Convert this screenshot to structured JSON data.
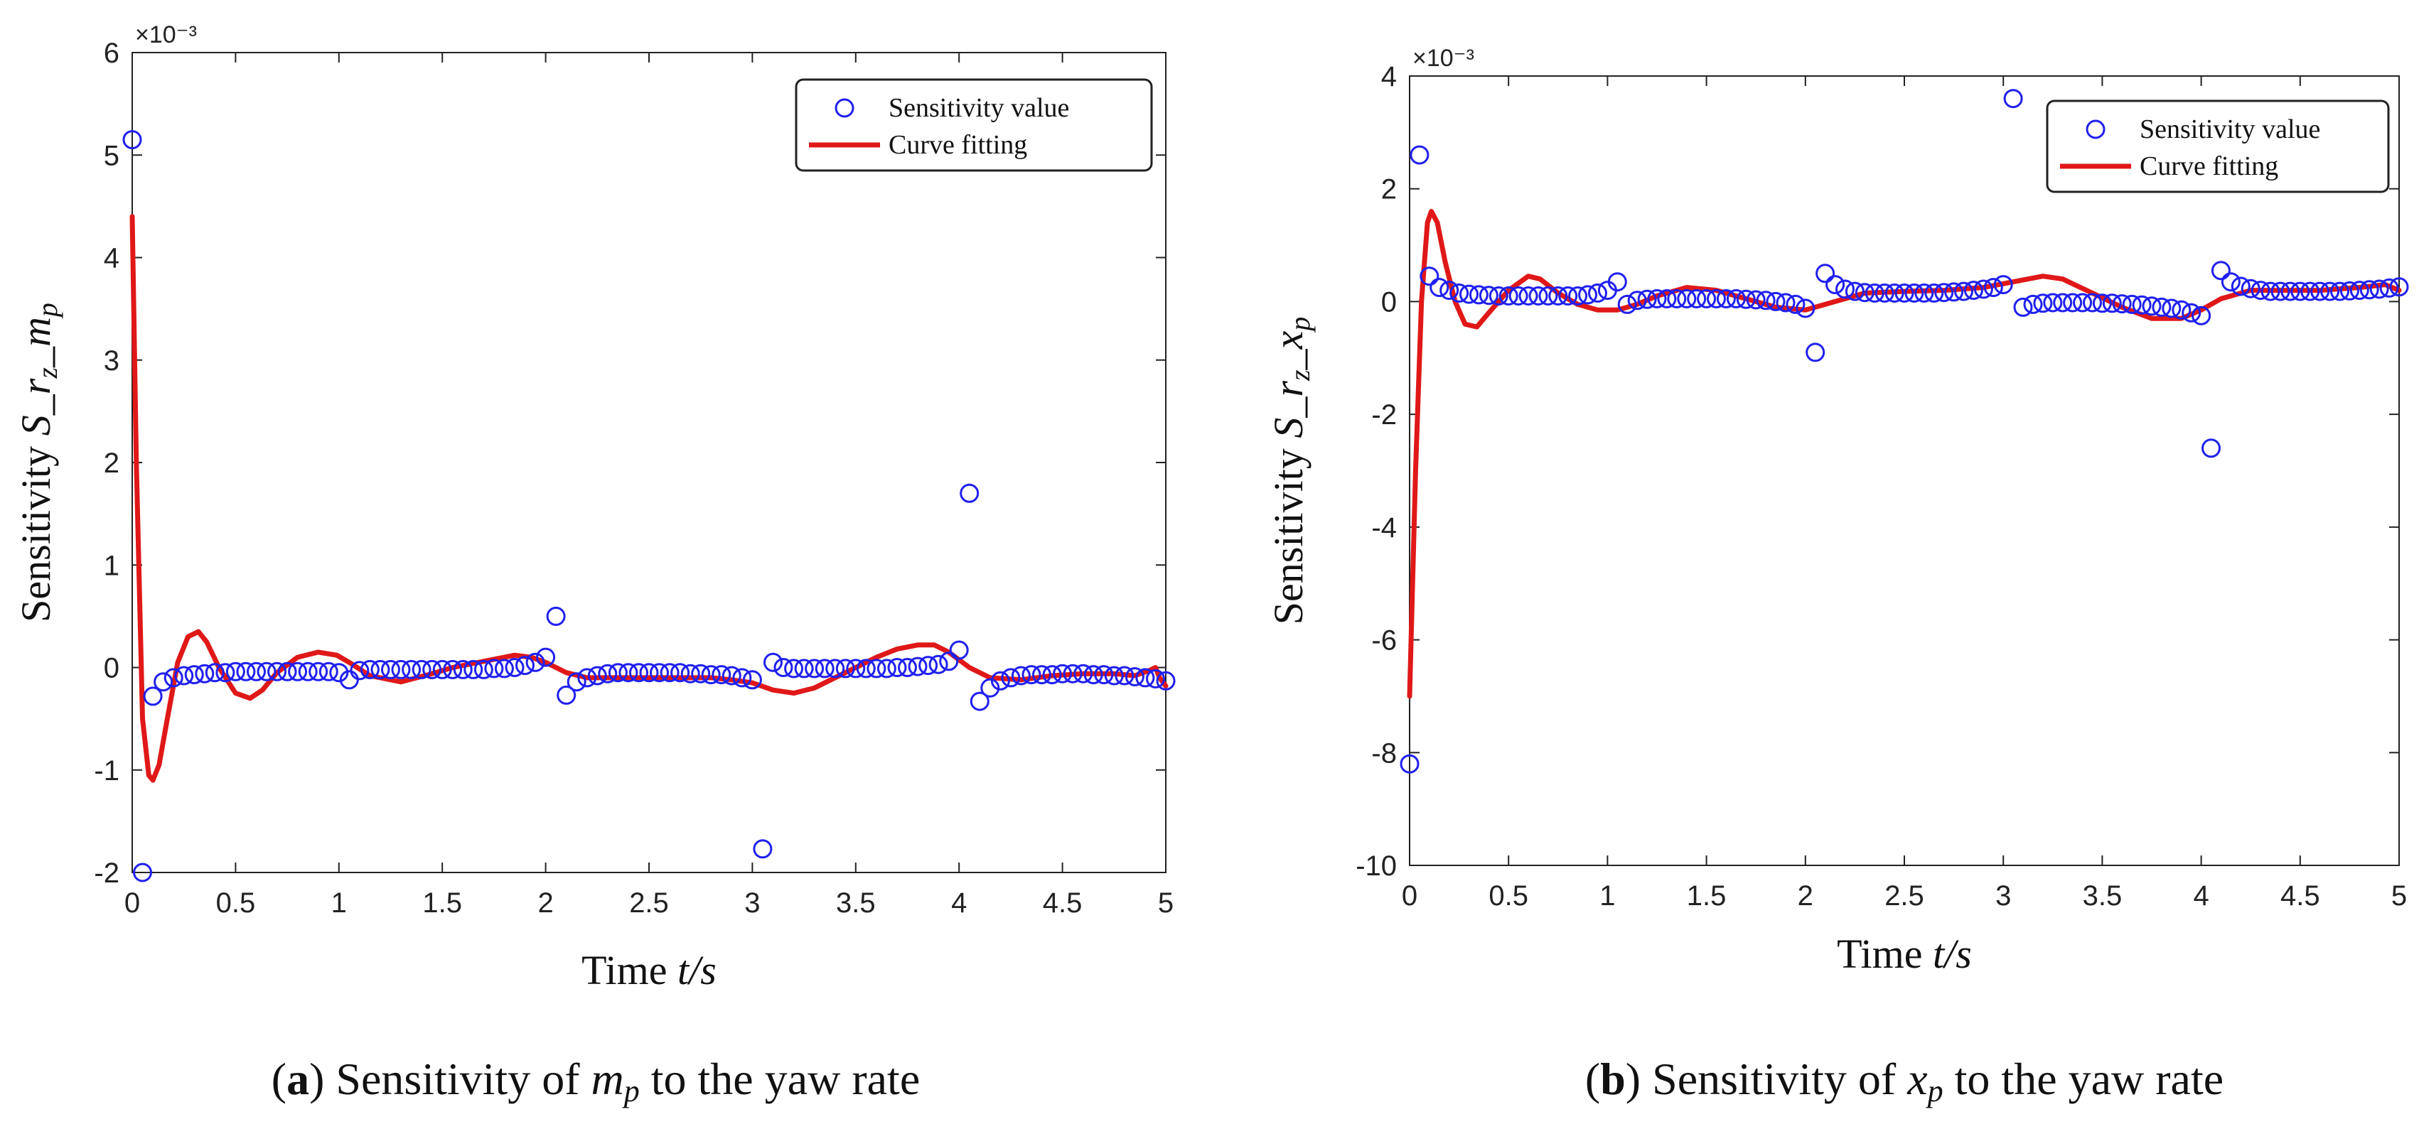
{
  "colors": {
    "marker": "#2020ee",
    "fit": "#e01818",
    "axis": "#222222"
  },
  "chart_data": [
    {
      "type": "scatter",
      "exponent_label": "×10⁻³",
      "ylabel_prefix": "Sensitivity  ",
      "ylabel_S": "S",
      "ylabel_r": "_r",
      "ylabel_r_sub": "z",
      "ylabel_var": "_m",
      "ylabel_var_sub": "p",
      "xlabel_prefix": "Time ",
      "xlabel_var": "t",
      "xlabel_suffix": "/s",
      "xlim": [
        0,
        5
      ],
      "ylim": [
        -2,
        6
      ],
      "xticks": [
        0,
        0.5,
        1,
        1.5,
        2,
        2.5,
        3,
        3.5,
        4,
        4.5,
        5
      ],
      "xtick_labels": [
        "0",
        "0.5",
        "1",
        "1.5",
        "2",
        "2.5",
        "3",
        "3.5",
        "4",
        "4.5",
        "5"
      ],
      "yticks": [
        -2,
        -1,
        0,
        1,
        2,
        3,
        4,
        5,
        6
      ],
      "ytick_labels": [
        "-2",
        "-1",
        "0",
        "1",
        "2",
        "3",
        "4",
        "5",
        "6"
      ],
      "legend": {
        "position": "top-right",
        "marker_label": "Sensitivity value",
        "line_label": "Curve fitting"
      },
      "caption_open": "(",
      "caption_letter": "a",
      "caption_mid": ") Sensitivity of ",
      "caption_var": "m",
      "caption_var_sub": "p",
      "caption_tail": " to the yaw rate",
      "series": [
        {
          "name": "Sensitivity value",
          "x": [
            0.0,
            0.05,
            0.1,
            0.15,
            0.2,
            0.25,
            0.3,
            0.35,
            0.4,
            0.45,
            0.5,
            0.55,
            0.6,
            0.65,
            0.7,
            0.75,
            0.8,
            0.85,
            0.9,
            0.95,
            1.0,
            1.05,
            1.1,
            1.15,
            1.2,
            1.25,
            1.3,
            1.35,
            1.4,
            1.45,
            1.5,
            1.55,
            1.6,
            1.65,
            1.7,
            1.75,
            1.8,
            1.85,
            1.9,
            1.95,
            2.0,
            2.05,
            2.1,
            2.15,
            2.2,
            2.25,
            2.3,
            2.35,
            2.4,
            2.45,
            2.5,
            2.55,
            2.6,
            2.65,
            2.7,
            2.75,
            2.8,
            2.85,
            2.9,
            2.95,
            3.0,
            3.05,
            3.1,
            3.15,
            3.2,
            3.25,
            3.3,
            3.35,
            3.4,
            3.45,
            3.5,
            3.55,
            3.6,
            3.65,
            3.7,
            3.75,
            3.8,
            3.85,
            3.9,
            3.95,
            4.0,
            4.05,
            4.1,
            4.15,
            4.2,
            4.25,
            4.3,
            4.35,
            4.4,
            4.45,
            4.5,
            4.55,
            4.6,
            4.65,
            4.7,
            4.75,
            4.8,
            4.85,
            4.9,
            4.95,
            5.0
          ],
          "y": [
            5.15,
            -2.0,
            -0.28,
            -0.14,
            -0.1,
            -0.08,
            -0.07,
            -0.06,
            -0.05,
            -0.05,
            -0.04,
            -0.04,
            -0.04,
            -0.04,
            -0.04,
            -0.04,
            -0.04,
            -0.04,
            -0.04,
            -0.04,
            -0.05,
            -0.12,
            -0.03,
            -0.02,
            -0.02,
            -0.02,
            -0.02,
            -0.02,
            -0.02,
            -0.02,
            -0.02,
            -0.02,
            -0.02,
            -0.02,
            -0.02,
            -0.01,
            -0.01,
            0.0,
            0.02,
            0.05,
            0.1,
            0.5,
            -0.27,
            -0.14,
            -0.1,
            -0.08,
            -0.06,
            -0.05,
            -0.05,
            -0.05,
            -0.05,
            -0.05,
            -0.05,
            -0.05,
            -0.06,
            -0.06,
            -0.07,
            -0.07,
            -0.08,
            -0.1,
            -0.12,
            -1.77,
            0.05,
            0.0,
            -0.01,
            -0.01,
            -0.01,
            -0.01,
            -0.01,
            -0.01,
            -0.01,
            -0.01,
            -0.01,
            -0.01,
            0.0,
            0.0,
            0.01,
            0.02,
            0.03,
            0.06,
            0.17,
            1.7,
            -0.33,
            -0.2,
            -0.13,
            -0.1,
            -0.08,
            -0.07,
            -0.07,
            -0.07,
            -0.06,
            -0.06,
            -0.06,
            -0.07,
            -0.07,
            -0.08,
            -0.08,
            -0.09,
            -0.1,
            -0.11,
            -0.13
          ]
        },
        {
          "name": "Curve fitting",
          "x": [
            0.0,
            0.02,
            0.05,
            0.08,
            0.1,
            0.13,
            0.17,
            0.22,
            0.27,
            0.32,
            0.36,
            0.42,
            0.5,
            0.57,
            0.63,
            0.7,
            0.8,
            0.9,
            0.99,
            1.05,
            1.15,
            1.3,
            1.45,
            1.55,
            1.7,
            1.85,
            1.93,
            2.0,
            2.1,
            2.2,
            2.35,
            2.5,
            2.65,
            2.8,
            2.9,
            3.0,
            3.1,
            3.2,
            3.3,
            3.45,
            3.6,
            3.7,
            3.8,
            3.88,
            3.95,
            4.05,
            4.15,
            4.3,
            4.45,
            4.6,
            4.75,
            4.85,
            4.92,
            4.95,
            4.97,
            5.0
          ],
          "y": [
            4.4,
            2.0,
            -0.5,
            -1.05,
            -1.1,
            -0.95,
            -0.5,
            0.05,
            0.3,
            0.35,
            0.25,
            0.0,
            -0.25,
            -0.3,
            -0.22,
            -0.05,
            0.1,
            0.15,
            0.12,
            0.05,
            -0.08,
            -0.14,
            -0.06,
            0.0,
            0.06,
            0.12,
            0.1,
            0.05,
            -0.05,
            -0.1,
            -0.1,
            -0.1,
            -0.1,
            -0.1,
            -0.12,
            -0.15,
            -0.22,
            -0.25,
            -0.2,
            -0.05,
            0.1,
            0.18,
            0.22,
            0.22,
            0.15,
            0.0,
            -0.1,
            -0.12,
            -0.08,
            -0.06,
            -0.06,
            -0.08,
            -0.03,
            0.0,
            -0.1,
            -0.18
          ]
        }
      ]
    },
    {
      "type": "scatter",
      "exponent_label": "×10⁻³",
      "ylabel_prefix": "Sensitivity  ",
      "ylabel_S": "S",
      "ylabel_r": "_r",
      "ylabel_r_sub": "z",
      "ylabel_var": "_x",
      "ylabel_var_sub": "p",
      "xlabel_prefix": "Time ",
      "xlabel_var": "t",
      "xlabel_suffix": "/s",
      "xlim": [
        0,
        5
      ],
      "ylim": [
        -10,
        4
      ],
      "xticks": [
        0,
        0.5,
        1,
        1.5,
        2,
        2.5,
        3,
        3.5,
        4,
        4.5,
        5
      ],
      "xtick_labels": [
        "0",
        "0.5",
        "1",
        "1.5",
        "2",
        "2.5",
        "3",
        "3.5",
        "4",
        "4.5",
        "5"
      ],
      "yticks": [
        -10,
        -8,
        -6,
        -4,
        -2,
        0,
        2,
        4
      ],
      "ytick_labels": [
        "-10",
        "-8",
        "-6",
        "-4",
        "-2",
        "0",
        "2",
        "4"
      ],
      "legend": {
        "position": "top-right",
        "marker_label": "Sensitivity value",
        "line_label": "Curve fitting"
      },
      "caption_open": "(",
      "caption_letter": "b",
      "caption_mid": ") Sensitivity of ",
      "caption_var": "x",
      "caption_var_sub": "p",
      "caption_tail": " to the yaw rate",
      "series": [
        {
          "name": "Sensitivity value",
          "x": [
            0.0,
            0.05,
            0.1,
            0.15,
            0.2,
            0.25,
            0.3,
            0.35,
            0.4,
            0.45,
            0.5,
            0.55,
            0.6,
            0.65,
            0.7,
            0.75,
            0.8,
            0.85,
            0.9,
            0.95,
            1.0,
            1.05,
            1.1,
            1.15,
            1.2,
            1.25,
            1.3,
            1.35,
            1.4,
            1.45,
            1.5,
            1.55,
            1.6,
            1.65,
            1.7,
            1.75,
            1.8,
            1.85,
            1.9,
            1.95,
            2.0,
            2.05,
            2.1,
            2.15,
            2.2,
            2.25,
            2.3,
            2.35,
            2.4,
            2.45,
            2.5,
            2.55,
            2.6,
            2.65,
            2.7,
            2.75,
            2.8,
            2.85,
            2.9,
            2.95,
            3.0,
            3.05,
            3.1,
            3.15,
            3.2,
            3.25,
            3.3,
            3.35,
            3.4,
            3.45,
            3.5,
            3.55,
            3.6,
            3.65,
            3.7,
            3.75,
            3.8,
            3.85,
            3.9,
            3.95,
            4.0,
            4.05,
            4.1,
            4.15,
            4.2,
            4.25,
            4.3,
            4.35,
            4.4,
            4.45,
            4.5,
            4.55,
            4.6,
            4.65,
            4.7,
            4.75,
            4.8,
            4.85,
            4.9,
            4.95,
            5.0
          ],
          "y": [
            -8.2,
            2.6,
            0.45,
            0.25,
            0.2,
            0.15,
            0.13,
            0.12,
            0.11,
            0.1,
            0.1,
            0.1,
            0.1,
            0.1,
            0.1,
            0.1,
            0.1,
            0.1,
            0.12,
            0.15,
            0.2,
            0.35,
            -0.05,
            0.02,
            0.04,
            0.05,
            0.05,
            0.05,
            0.05,
            0.05,
            0.05,
            0.05,
            0.05,
            0.05,
            0.04,
            0.03,
            0.02,
            0.0,
            -0.02,
            -0.05,
            -0.12,
            -0.9,
            0.5,
            0.3,
            0.22,
            0.18,
            0.16,
            0.15,
            0.15,
            0.15,
            0.15,
            0.15,
            0.15,
            0.15,
            0.16,
            0.17,
            0.18,
            0.2,
            0.22,
            0.25,
            0.3,
            3.6,
            -0.1,
            -0.05,
            -0.03,
            -0.02,
            -0.02,
            -0.02,
            -0.02,
            -0.02,
            -0.03,
            -0.03,
            -0.04,
            -0.05,
            -0.06,
            -0.08,
            -0.1,
            -0.12,
            -0.15,
            -0.2,
            -0.25,
            -2.6,
            0.55,
            0.35,
            0.27,
            0.23,
            0.2,
            0.18,
            0.18,
            0.18,
            0.18,
            0.18,
            0.18,
            0.18,
            0.18,
            0.19,
            0.2,
            0.21,
            0.22,
            0.24,
            0.26
          ]
        },
        {
          "name": "Curve fitting",
          "x": [
            0.0,
            0.03,
            0.06,
            0.09,
            0.11,
            0.14,
            0.18,
            0.23,
            0.28,
            0.34,
            0.4,
            0.5,
            0.6,
            0.66,
            0.75,
            0.85,
            0.95,
            1.05,
            1.15,
            1.25,
            1.4,
            1.55,
            1.7,
            1.85,
            2.0,
            2.15,
            2.3,
            2.5,
            2.7,
            2.9,
            3.05,
            3.2,
            3.3,
            3.45,
            3.6,
            3.75,
            3.9,
            4.0,
            4.1,
            4.25,
            4.45,
            4.6,
            4.8,
            4.93,
            5.0
          ],
          "y": [
            -7.0,
            -3.0,
            0.0,
            1.4,
            1.6,
            1.4,
            0.7,
            0.0,
            -0.4,
            -0.45,
            -0.2,
            0.2,
            0.45,
            0.4,
            0.15,
            -0.05,
            -0.15,
            -0.15,
            -0.05,
            0.1,
            0.25,
            0.2,
            0.05,
            -0.1,
            -0.15,
            0.0,
            0.15,
            0.18,
            0.2,
            0.25,
            0.35,
            0.45,
            0.4,
            0.15,
            -0.1,
            -0.3,
            -0.3,
            -0.15,
            0.05,
            0.2,
            0.2,
            0.2,
            0.25,
            0.3,
            0.2
          ]
        }
      ]
    }
  ]
}
